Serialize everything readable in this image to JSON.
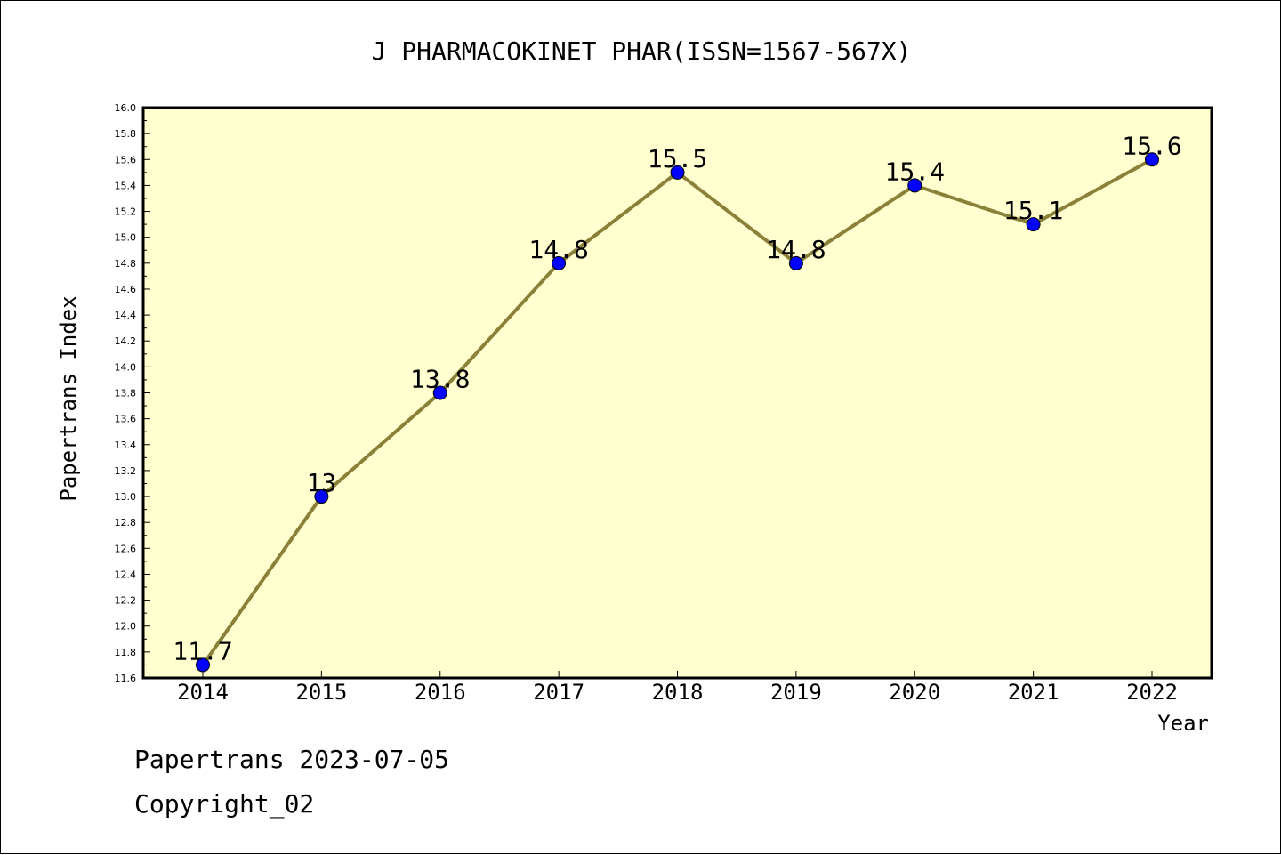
{
  "chart_data": {
    "type": "line",
    "title": "J PHARMACOKINET PHAR(ISSN=1567-567X)",
    "xlabel": "Year",
    "ylabel": "Papertrans Index",
    "categories": [
      "2014",
      "2015",
      "2016",
      "2017",
      "2018",
      "2019",
      "2020",
      "2021",
      "2022"
    ],
    "series": [
      {
        "values": [
          11.7,
          13.0,
          13.8,
          14.8,
          15.5,
          14.8,
          15.4,
          15.1,
          15.6
        ],
        "labels": [
          "11.7",
          "13",
          "13.8",
          "14.8",
          "15.5",
          "14.8",
          "15.4",
          "15.1",
          "15.6"
        ]
      }
    ],
    "ylim": [
      11.6,
      16.0
    ],
    "yticks": [
      "11.6",
      "11.8",
      "12.0",
      "12.2",
      "12.4",
      "12.6",
      "12.8",
      "13.0",
      "13.2",
      "13.4",
      "13.6",
      "13.8",
      "14.0",
      "14.2",
      "14.4",
      "14.6",
      "14.8",
      "15.0",
      "15.2",
      "15.4",
      "15.6",
      "15.8",
      "16.0"
    ],
    "grid": false,
    "legend": "none",
    "colors": {
      "plot_background": "#ffffd0",
      "line": "#8b8038",
      "marker": "#0000ff"
    }
  },
  "footer": {
    "line1": "Papertrans 2023-07-05",
    "line2": "Copyright_02"
  }
}
